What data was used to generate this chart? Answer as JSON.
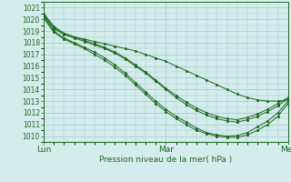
{
  "title": "",
  "xlabel": "Pression niveau de la mer( hPa )",
  "ylim": [
    1009.5,
    1021.5
  ],
  "xlim": [
    0,
    48
  ],
  "yticks": [
    1010,
    1011,
    1012,
    1013,
    1014,
    1015,
    1016,
    1017,
    1018,
    1019,
    1020,
    1021
  ],
  "xtick_positions": [
    0,
    24,
    48
  ],
  "xtick_labels": [
    "Lun",
    "Mar",
    "Mer"
  ],
  "bg_color": "#d4ecec",
  "grid_color": "#a0c8c8",
  "line_color": "#1a6b1a",
  "marker": "*",
  "figsize": [
    3.2,
    2.0
  ],
  "dpi": 100,
  "series": [
    [
      1020.5,
      1019.4,
      1018.8,
      1018.5,
      1018.3,
      1018.1,
      1017.9,
      1017.7,
      1017.5,
      1017.3,
      1017.0,
      1016.7,
      1016.4,
      1016.0,
      1015.6,
      1015.2,
      1014.8,
      1014.4,
      1014.0,
      1013.6,
      1013.3,
      1013.1,
      1013.0,
      1013.0,
      1013.1
    ],
    [
      1020.3,
      1019.2,
      1018.7,
      1018.4,
      1018.1,
      1017.8,
      1017.5,
      1017.1,
      1016.6,
      1016.0,
      1015.4,
      1014.7,
      1014.0,
      1013.3,
      1012.7,
      1012.2,
      1011.8,
      1011.5,
      1011.3,
      1011.2,
      1011.4,
      1011.7,
      1012.1,
      1012.6,
      1013.2
    ],
    [
      1020.2,
      1019.0,
      1018.4,
      1018.0,
      1017.6,
      1017.2,
      1016.7,
      1016.1,
      1015.4,
      1014.6,
      1013.8,
      1013.0,
      1012.3,
      1011.7,
      1011.2,
      1010.7,
      1010.3,
      1010.1,
      1010.0,
      1010.05,
      1010.3,
      1010.8,
      1011.3,
      1012.0,
      1013.0
    ],
    [
      1020.1,
      1018.9,
      1018.3,
      1017.9,
      1017.5,
      1017.0,
      1016.5,
      1015.9,
      1015.2,
      1014.4,
      1013.6,
      1012.8,
      1012.1,
      1011.5,
      1011.0,
      1010.5,
      1010.2,
      1010.0,
      1009.9,
      1009.9,
      1010.1,
      1010.5,
      1011.0,
      1011.7,
      1012.8
    ],
    [
      1020.4,
      1019.3,
      1018.8,
      1018.5,
      1018.2,
      1017.9,
      1017.6,
      1017.2,
      1016.7,
      1016.1,
      1015.5,
      1014.8,
      1014.1,
      1013.5,
      1012.9,
      1012.4,
      1012.0,
      1011.7,
      1011.5,
      1011.4,
      1011.6,
      1011.9,
      1012.3,
      1012.8,
      1013.3
    ]
  ]
}
